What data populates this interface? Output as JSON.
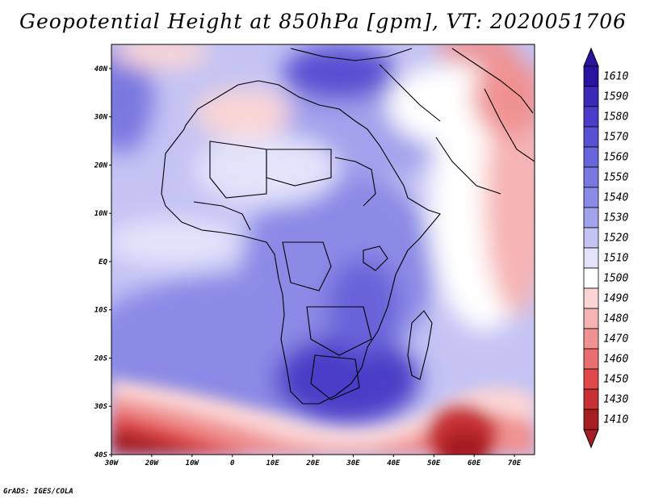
{
  "title": "Geopotential Height at 850hPa [gpm], VT: 2020051706",
  "credit": "GrADS: IGES/COLA",
  "map": {
    "lat_labels": [
      "40N",
      "30N",
      "20N",
      "10N",
      "EQ",
      "10S",
      "20S",
      "30S",
      "40S"
    ],
    "lon_labels": [
      "30W",
      "20W",
      "10W",
      "0",
      "10E",
      "20E",
      "30E",
      "40E",
      "50E",
      "60E",
      "70E"
    ],
    "lat_range": [
      -40,
      45
    ],
    "lon_range": [
      -30,
      75
    ],
    "field_colors": {
      "deep_low": "#a61e22",
      "low": "#e8474a",
      "mid_low": "#f6b3b3",
      "neutral": "#ffffff",
      "mid_high": "#c9c8f3",
      "high": "#8482e6",
      "deep_high": "#3b2bb8"
    }
  },
  "colorbar": {
    "levels": [
      "1610",
      "1590",
      "1580",
      "1570",
      "1560",
      "1550",
      "1540",
      "1530",
      "1520",
      "1510",
      "1500",
      "1490",
      "1480",
      "1470",
      "1460",
      "1450",
      "1430",
      "1410"
    ],
    "colors": [
      "#28149e",
      "#3b2bb8",
      "#4c3cc7",
      "#5a50d2",
      "#6864d9",
      "#7a78e0",
      "#8b8ae6",
      "#a3a2ec",
      "#c4c3f4",
      "#e3e3fb",
      "#ffffff",
      "#fbd5d5",
      "#f6b3b3",
      "#f09292",
      "#e86e6f",
      "#e0484a",
      "#c83134",
      "#a61e22"
    ]
  }
}
